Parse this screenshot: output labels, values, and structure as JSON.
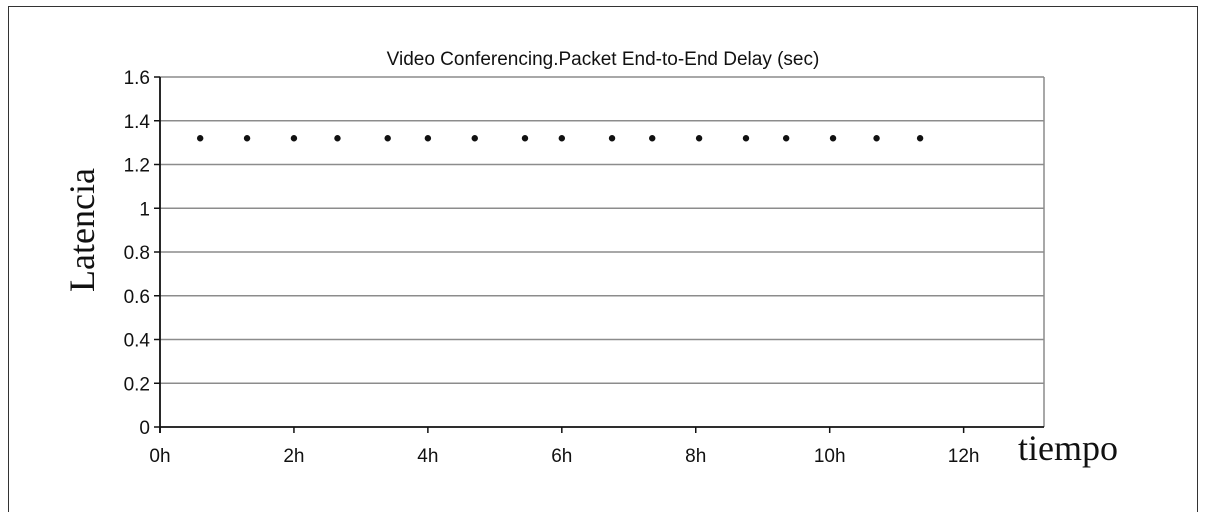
{
  "chart_data": {
    "type": "scatter",
    "title": "Video Conferencing.Packet End-to-End Delay (sec)",
    "xlabel": "tiempo",
    "ylabel": "Latencia",
    "xlim": [
      0,
      13.2
    ],
    "ylim": [
      0,
      1.6
    ],
    "x_tick_values": [
      0,
      2,
      4,
      6,
      8,
      10,
      12
    ],
    "x_tick_labels": [
      "0h",
      "2h",
      "4h",
      "6h",
      "8h",
      "10h",
      "12h"
    ],
    "y_tick_values": [
      0,
      0.2,
      0.4,
      0.6,
      0.8,
      1,
      1.2,
      1.4,
      1.6
    ],
    "y_tick_labels": [
      "0",
      "0.2",
      "0.4",
      "0.6",
      "0.8",
      "1",
      "1.2",
      "1.4",
      "1.6"
    ],
    "grid": true,
    "marker_color": "#111111",
    "grid_color": "#8c8c8c",
    "series": [
      {
        "x": [
          0.6,
          1.3,
          2.0,
          2.65,
          3.4,
          4.0,
          4.7,
          5.45,
          6.0,
          6.75,
          7.35,
          8.05,
          8.75,
          9.35,
          10.05,
          10.7,
          11.35
        ],
        "y": [
          1.32,
          1.32,
          1.32,
          1.32,
          1.32,
          1.32,
          1.32,
          1.32,
          1.32,
          1.32,
          1.32,
          1.32,
          1.32,
          1.32,
          1.32,
          1.32,
          1.32
        ]
      }
    ]
  }
}
